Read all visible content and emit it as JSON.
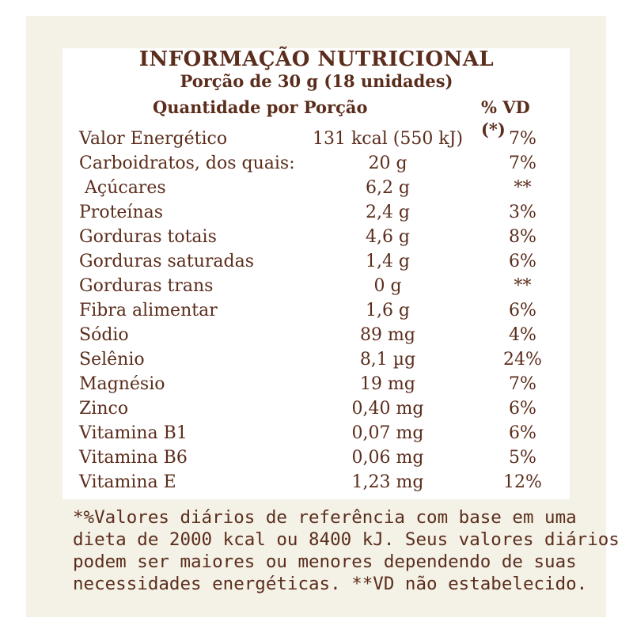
{
  "header": {
    "title": "INFORMAÇÃO NUTRICIONAL",
    "portion": "Porção de 30 g (18 unidades)",
    "quantity_label": "Quantidade por Porção",
    "vd_label": "% VD (*)"
  },
  "rows": [
    {
      "name": "Valor Energético",
      "amount": "131 kcal (550 kJ)",
      "vd": "7%"
    },
    {
      "name": "Carboidratos, dos quais:",
      "amount": "20 g",
      "vd": "7%"
    },
    {
      "name": " Açúcares",
      "amount": "6,2 g",
      "vd": "**"
    },
    {
      "name": "Proteínas",
      "amount": "2,4 g",
      "vd": "3%"
    },
    {
      "name": "Gorduras totais",
      "amount": "4,6 g",
      "vd": "8%"
    },
    {
      "name": "Gorduras saturadas",
      "amount": "1,4 g",
      "vd": "6%"
    },
    {
      "name": "Gorduras trans",
      "amount": "0 g",
      "vd": "**"
    },
    {
      "name": "Fibra alimentar",
      "amount": "1,6 g",
      "vd": "6%"
    },
    {
      "name": "Sódio",
      "amount": "89 mg",
      "vd": "4%"
    },
    {
      "name": "Selênio",
      "amount": "8,1 µg",
      "vd": "24%"
    },
    {
      "name": "Magnésio",
      "amount": "19 mg",
      "vd": "7%"
    },
    {
      "name": "Zinco",
      "amount": "0,40 mg",
      "vd": "6%"
    },
    {
      "name": "Vitamina B1",
      "amount": "0,07 mg",
      "vd": "6%"
    },
    {
      "name": "Vitamina B6",
      "amount": "0,06 mg",
      "vd": "5%"
    },
    {
      "name": "Vitamina E",
      "amount": "1,23 mg",
      "vd": "12%"
    }
  ],
  "footnote": {
    "line1": "*%Valores diários de referência com base em uma",
    "line2": "dieta de 2000 kcal ou 8400 kJ. Seus valores diários",
    "line3": "podem ser maiores ou menores dependendo de suas",
    "line4": "necessidades energéticas. **VD não estabelecido."
  },
  "colors": {
    "text": "#5b2d1c",
    "background": "#f4f1e6",
    "panel": "#ffffff"
  }
}
